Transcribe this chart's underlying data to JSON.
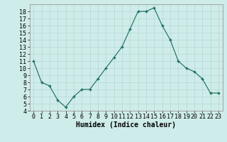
{
  "x": [
    0,
    1,
    2,
    3,
    4,
    5,
    6,
    7,
    8,
    9,
    10,
    11,
    12,
    13,
    14,
    15,
    16,
    17,
    18,
    19,
    20,
    21,
    22,
    23
  ],
  "y": [
    11,
    8,
    7.5,
    5.5,
    4.5,
    6,
    7,
    7,
    8.5,
    10,
    11.5,
    13,
    15.5,
    18,
    18,
    18.5,
    16,
    14,
    11,
    10,
    9.5,
    8.5,
    6.5,
    6.5
  ],
  "line_color": "#1a6b5a",
  "marker": "+",
  "marker_size": 3.5,
  "marker_lw": 1.0,
  "bg_color": "#ceecea",
  "grid_color": "#b8d8d4",
  "xlabel": "Humidex (Indice chaleur)",
  "xlabel_fontsize": 7,
  "tick_fontsize": 6,
  "ylim": [
    4,
    19
  ],
  "xlim": [
    -0.5,
    23.5
  ],
  "yticks": [
    4,
    5,
    6,
    7,
    8,
    9,
    10,
    11,
    12,
    13,
    14,
    15,
    16,
    17,
    18
  ],
  "xticks": [
    0,
    1,
    2,
    3,
    4,
    5,
    6,
    7,
    8,
    9,
    10,
    11,
    12,
    13,
    14,
    15,
    16,
    17,
    18,
    19,
    20,
    21,
    22,
    23
  ]
}
